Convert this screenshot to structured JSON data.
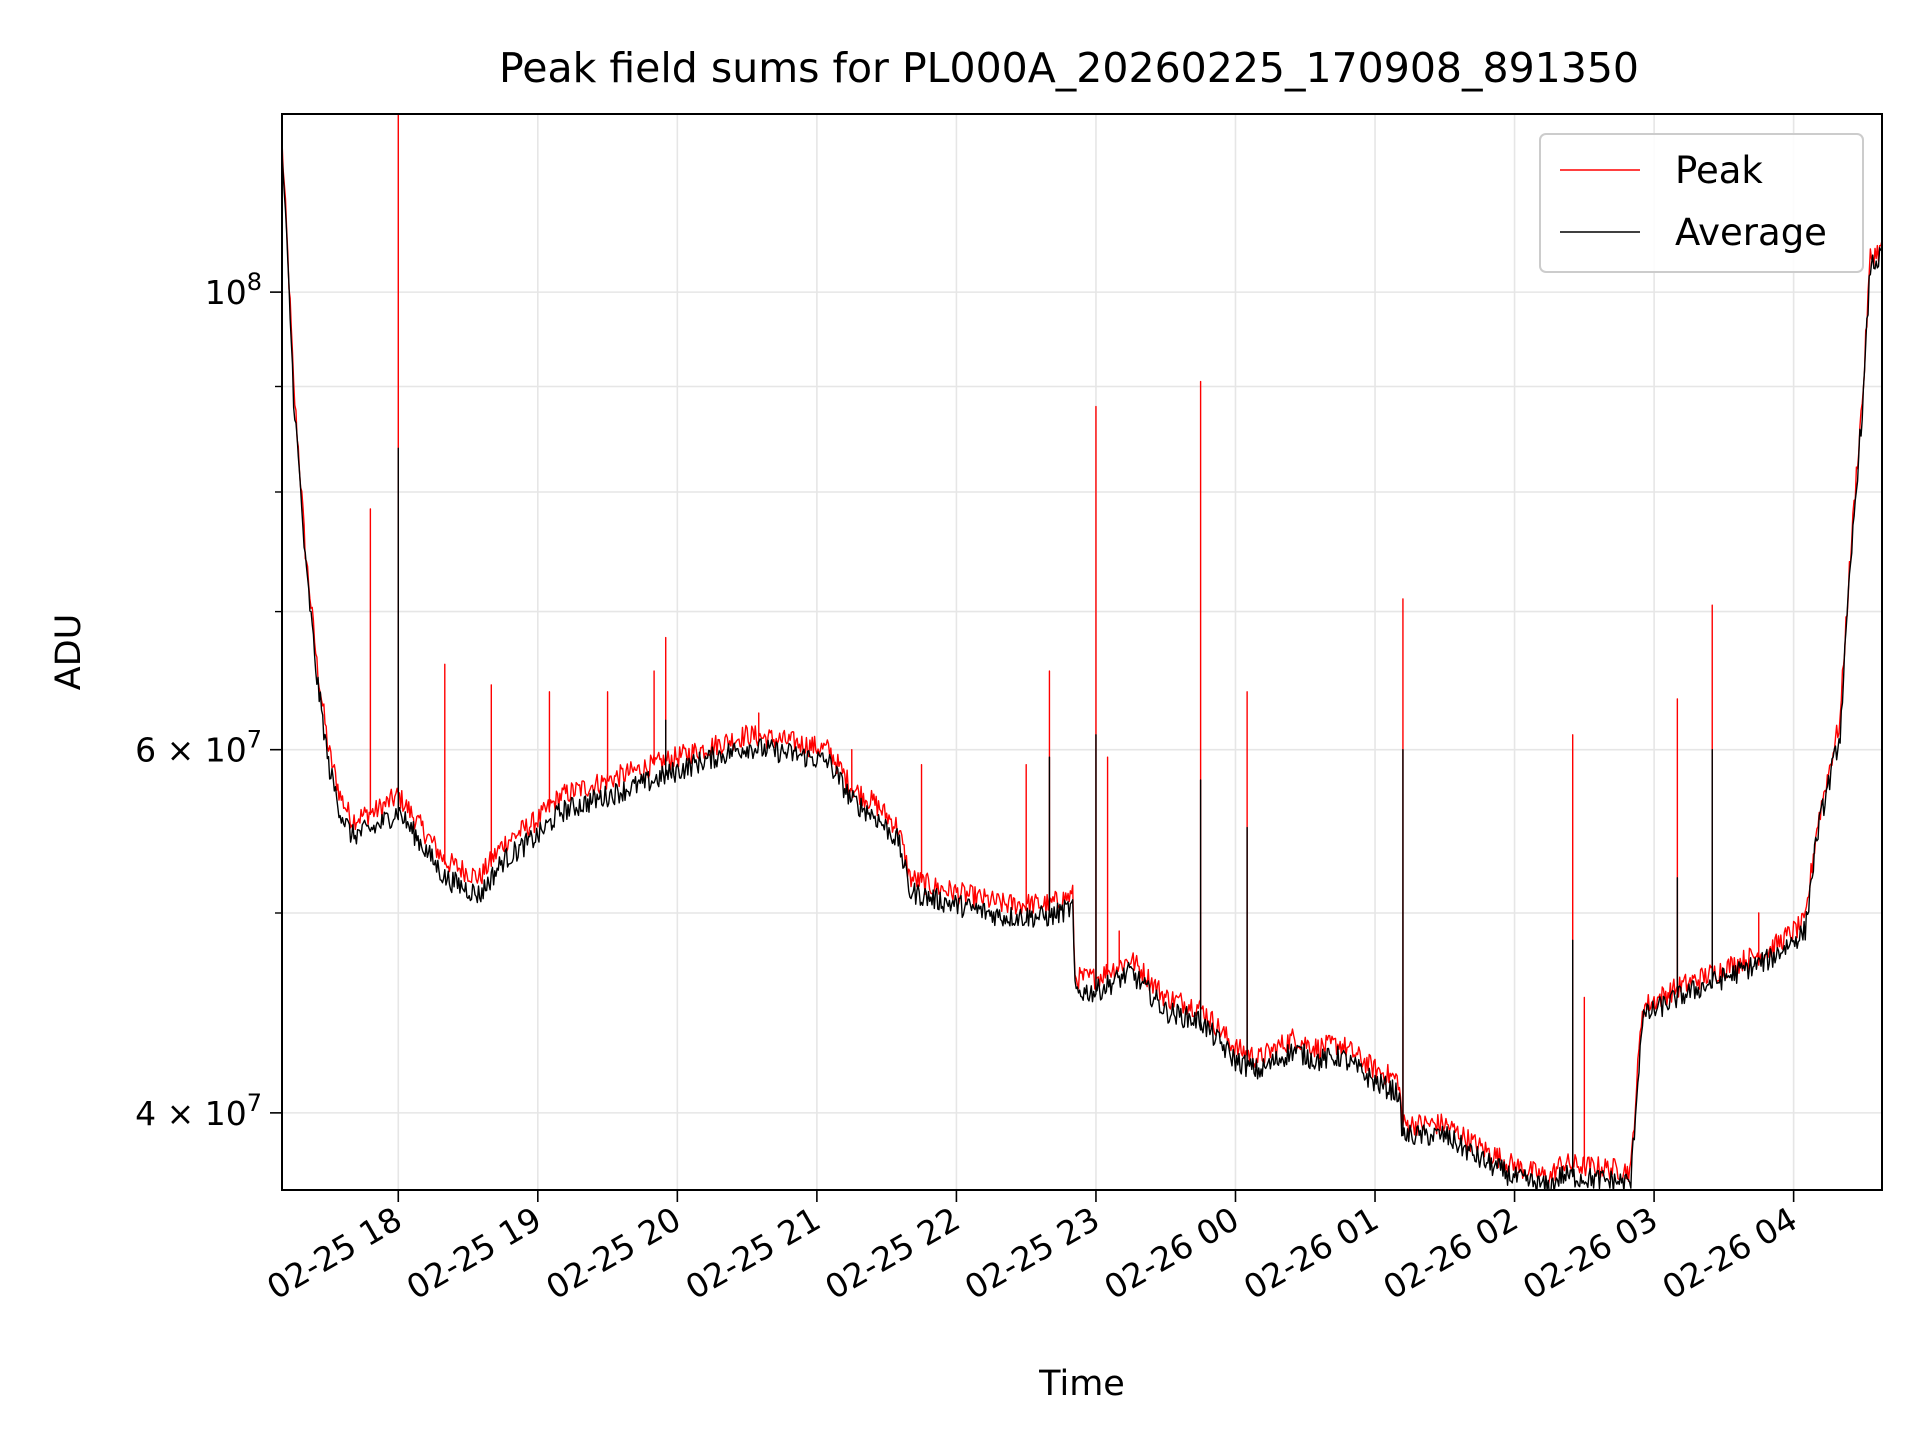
{
  "chart_data": {
    "type": "line",
    "title": "Peak field sums for PL000A_20260225_170908_891350",
    "xlabel": "Time",
    "ylabel": "ADU",
    "yscale": "log",
    "ylim": [
      36700000,
      122000000
    ],
    "xlim": [
      "2026-02-25 17:10",
      "2026-02-26 04:38"
    ],
    "grid": true,
    "legend_position": "top-right",
    "x_ticks": [
      {
        "t": "2026-02-25 18:00",
        "label": "02-25 18"
      },
      {
        "t": "2026-02-25 19:00",
        "label": "02-25 19"
      },
      {
        "t": "2026-02-25 20:00",
        "label": "02-25 20"
      },
      {
        "t": "2026-02-25 21:00",
        "label": "02-25 21"
      },
      {
        "t": "2026-02-25 22:00",
        "label": "02-25 22"
      },
      {
        "t": "2026-02-25 23:00",
        "label": "02-25 23"
      },
      {
        "t": "2026-02-26 00:00",
        "label": "02-26 00"
      },
      {
        "t": "2026-02-26 01:00",
        "label": "02-26 01"
      },
      {
        "t": "2026-02-26 02:00",
        "label": "02-26 02"
      },
      {
        "t": "2026-02-26 03:00",
        "label": "02-26 03"
      },
      {
        "t": "2026-02-26 04:00",
        "label": "02-26 04"
      }
    ],
    "y_ticks": [
      {
        "value": 100000000,
        "base": "10",
        "exp": "8"
      },
      {
        "value": 60000000,
        "base": "6 × 10",
        "exp": "7"
      },
      {
        "value": 40000000,
        "base": "4 × 10",
        "exp": "7"
      }
    ],
    "y_minor_gridlines": [
      50000000,
      70000000,
      80000000,
      90000000
    ],
    "series": [
      {
        "name": "Peak",
        "color": "#ff0000",
        "baseline": [
          [
            "2026-02-25 17:10",
            118000000
          ],
          [
            "2026-02-25 17:15",
            90000000
          ],
          [
            "2026-02-25 17:20",
            75000000
          ],
          [
            "2026-02-25 17:25",
            66000000
          ],
          [
            "2026-02-25 17:30",
            60000000
          ],
          [
            "2026-02-25 17:35",
            57000000
          ],
          [
            "2026-02-25 17:40",
            55500000
          ],
          [
            "2026-02-25 17:50",
            56000000
          ],
          [
            "2026-02-25 18:00",
            57000000
          ],
          [
            "2026-02-25 18:10",
            55000000
          ],
          [
            "2026-02-25 18:20",
            53000000
          ],
          [
            "2026-02-25 18:35",
            52000000
          ],
          [
            "2026-02-25 18:45",
            54000000
          ],
          [
            "2026-02-25 19:00",
            55500000
          ],
          [
            "2026-02-25 19:10",
            57000000
          ],
          [
            "2026-02-25 19:30",
            58000000
          ],
          [
            "2026-02-25 19:50",
            59000000
          ],
          [
            "2026-02-25 20:10",
            60000000
          ],
          [
            "2026-02-25 20:30",
            61000000
          ],
          [
            "2026-02-25 20:50",
            60500000
          ],
          [
            "2026-02-25 21:05",
            60000000
          ],
          [
            "2026-02-25 21:15",
            57500000
          ],
          [
            "2026-02-25 21:25",
            56500000
          ],
          [
            "2026-02-25 21:35",
            55000000
          ],
          [
            "2026-02-25 21:40",
            52000000
          ],
          [
            "2026-02-25 21:50",
            51500000
          ],
          [
            "2026-02-25 22:05",
            51000000
          ],
          [
            "2026-02-25 22:20",
            50500000
          ],
          [
            "2026-02-25 22:40",
            50500000
          ],
          [
            "2026-02-25 22:50",
            51000000
          ],
          [
            "2026-02-25 22:51",
            46500000
          ],
          [
            "2026-02-25 23:00",
            46500000
          ],
          [
            "2026-02-25 23:15",
            47500000
          ],
          [
            "2026-02-25 23:30",
            45500000
          ],
          [
            "2026-02-25 23:45",
            45000000
          ],
          [
            "2026-02-26 00:00",
            43000000
          ],
          [
            "2026-02-26 00:10",
            42500000
          ],
          [
            "2026-02-26 00:25",
            43500000
          ],
          [
            "2026-02-26 00:35",
            43000000
          ],
          [
            "2026-02-26 00:45",
            43200000
          ],
          [
            "2026-02-26 01:00",
            42000000
          ],
          [
            "2026-02-26 01:10",
            41500000
          ],
          [
            "2026-02-26 01:12",
            39500000
          ],
          [
            "2026-02-26 01:30",
            39500000
          ],
          [
            "2026-02-26 01:45",
            38500000
          ],
          [
            "2026-02-26 02:00",
            37700000
          ],
          [
            "2026-02-26 02:15",
            37200000
          ],
          [
            "2026-02-26 02:20",
            37800000
          ],
          [
            "2026-02-26 02:50",
            37500000
          ],
          [
            "2026-02-26 02:55",
            45000000
          ],
          [
            "2026-02-26 03:10",
            46000000
          ],
          [
            "2026-02-26 03:30",
            47000000
          ],
          [
            "2026-02-26 03:50",
            48000000
          ],
          [
            "2026-02-26 04:05",
            49500000
          ],
          [
            "2026-02-26 04:10",
            55000000
          ],
          [
            "2026-02-26 04:20",
            62000000
          ],
          [
            "2026-02-26 04:30",
            90000000
          ],
          [
            "2026-02-26 04:33",
            104000000
          ],
          [
            "2026-02-26 04:38",
            105000000
          ]
        ],
        "spikes": [
          [
            "2026-02-25 17:48",
            78500000
          ],
          [
            "2026-02-25 18:00",
            122000000
          ],
          [
            "2026-02-25 18:20",
            66000000
          ],
          [
            "2026-02-25 18:40",
            64500000
          ],
          [
            "2026-02-25 19:05",
            64000000
          ],
          [
            "2026-02-25 19:30",
            64000000
          ],
          [
            "2026-02-25 19:50",
            65500000
          ],
          [
            "2026-02-25 19:55",
            68000000
          ],
          [
            "2026-02-25 20:35",
            62500000
          ],
          [
            "2026-02-25 21:15",
            60000000
          ],
          [
            "2026-02-25 21:45",
            59000000
          ],
          [
            "2026-02-25 22:30",
            59000000
          ],
          [
            "2026-02-25 22:40",
            65500000
          ],
          [
            "2026-02-25 23:00",
            88000000
          ],
          [
            "2026-02-25 23:05",
            59500000
          ],
          [
            "2026-02-25 23:10",
            49000000
          ],
          [
            "2026-02-25 23:45",
            90500000
          ],
          [
            "2026-02-26 00:05",
            64000000
          ],
          [
            "2026-02-26 01:12",
            71000000
          ],
          [
            "2026-02-26 02:25",
            61000000
          ],
          [
            "2026-02-26 02:30",
            45500000
          ],
          [
            "2026-02-26 03:10",
            63500000
          ],
          [
            "2026-02-26 03:25",
            70500000
          ],
          [
            "2026-02-26 03:45",
            50000000
          ]
        ]
      },
      {
        "name": "Average",
        "color": "#000000",
        "baseline": [
          [
            "2026-02-25 17:10",
            117000000
          ],
          [
            "2026-02-25 17:15",
            89000000
          ],
          [
            "2026-02-25 17:20",
            74000000
          ],
          [
            "2026-02-25 17:25",
            65000000
          ],
          [
            "2026-02-25 17:30",
            59000000
          ],
          [
            "2026-02-25 17:35",
            56000000
          ],
          [
            "2026-02-25 17:40",
            54500000
          ],
          [
            "2026-02-25 17:50",
            55000000
          ],
          [
            "2026-02-25 18:00",
            56000000
          ],
          [
            "2026-02-25 18:10",
            54000000
          ],
          [
            "2026-02-25 18:20",
            52000000
          ],
          [
            "2026-02-25 18:35",
            51000000
          ],
          [
            "2026-02-25 18:45",
            53000000
          ],
          [
            "2026-02-25 19:00",
            54500000
          ],
          [
            "2026-02-25 19:10",
            56000000
          ],
          [
            "2026-02-25 19:30",
            57000000
          ],
          [
            "2026-02-25 19:50",
            58000000
          ],
          [
            "2026-02-25 20:10",
            59200000
          ],
          [
            "2026-02-25 20:30",
            60200000
          ],
          [
            "2026-02-25 20:50",
            59700000
          ],
          [
            "2026-02-25 21:05",
            59200000
          ],
          [
            "2026-02-25 21:15",
            56700000
          ],
          [
            "2026-02-25 21:25",
            55700000
          ],
          [
            "2026-02-25 21:35",
            54200000
          ],
          [
            "2026-02-25 21:40",
            51200000
          ],
          [
            "2026-02-25 21:50",
            50800000
          ],
          [
            "2026-02-25 22:05",
            50300000
          ],
          [
            "2026-02-25 22:20",
            49800000
          ],
          [
            "2026-02-25 22:40",
            49800000
          ],
          [
            "2026-02-25 22:50",
            50300000
          ],
          [
            "2026-02-25 22:51",
            45800000
          ],
          [
            "2026-02-25 23:00",
            45800000
          ],
          [
            "2026-02-25 23:15",
            46800000
          ],
          [
            "2026-02-25 23:30",
            44800000
          ],
          [
            "2026-02-25 23:45",
            44300000
          ],
          [
            "2026-02-26 00:00",
            42400000
          ],
          [
            "2026-02-26 00:10",
            41900000
          ],
          [
            "2026-02-26 00:25",
            42900000
          ],
          [
            "2026-02-26 00:35",
            42400000
          ],
          [
            "2026-02-26 00:45",
            42600000
          ],
          [
            "2026-02-26 01:00",
            41400000
          ],
          [
            "2026-02-26 01:10",
            40900000
          ],
          [
            "2026-02-26 01:12",
            39000000
          ],
          [
            "2026-02-26 01:30",
            39000000
          ],
          [
            "2026-02-26 01:45",
            38000000
          ],
          [
            "2026-02-26 02:00",
            37200000
          ],
          [
            "2026-02-26 02:15",
            36800000
          ],
          [
            "2026-02-26 02:20",
            37300000
          ],
          [
            "2026-02-26 02:50",
            37000000
          ],
          [
            "2026-02-26 02:55",
            44500000
          ],
          [
            "2026-02-26 03:10",
            45500000
          ],
          [
            "2026-02-26 03:30",
            46500000
          ],
          [
            "2026-02-26 03:50",
            47500000
          ],
          [
            "2026-02-26 04:05",
            49000000
          ],
          [
            "2026-02-26 04:10",
            54500000
          ],
          [
            "2026-02-26 04:20",
            61000000
          ],
          [
            "2026-02-26 04:30",
            89000000
          ],
          [
            "2026-02-26 04:33",
            103000000
          ],
          [
            "2026-02-26 04:38",
            104000000
          ]
        ],
        "spikes": [
          [
            "2026-02-25 18:00",
            84000000
          ],
          [
            "2026-02-25 19:55",
            62000000
          ],
          [
            "2026-02-25 22:40",
            59500000
          ],
          [
            "2026-02-25 23:00",
            61000000
          ],
          [
            "2026-02-25 23:45",
            58000000
          ],
          [
            "2026-02-26 00:05",
            55000000
          ],
          [
            "2026-02-26 01:12",
            60000000
          ],
          [
            "2026-02-26 02:25",
            48500000
          ],
          [
            "2026-02-26 03:10",
            52000000
          ],
          [
            "2026-02-26 03:25",
            60000000
          ]
        ]
      }
    ]
  }
}
